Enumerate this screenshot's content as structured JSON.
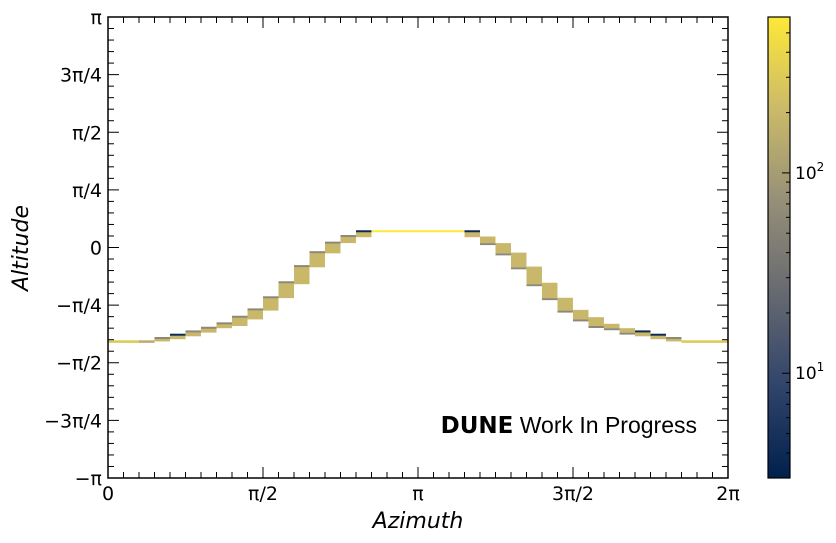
{
  "chart_data": {
    "type": "heatmap",
    "xlabel": "Azimuth",
    "ylabel": "Altitude",
    "xlim": [
      0,
      6.283185
    ],
    "ylim": [
      -3.141593,
      3.141593
    ],
    "x_ticks": [
      {
        "value": 0,
        "label": "0"
      },
      {
        "value": 1.570796,
        "label": "π/2"
      },
      {
        "value": 3.141593,
        "label": "π"
      },
      {
        "value": 4.712389,
        "label": "3π/2"
      },
      {
        "value": 6.283185,
        "label": "2π"
      }
    ],
    "y_ticks": [
      {
        "value": -3.141593,
        "label": "−π"
      },
      {
        "value": -2.356194,
        "label": "−3π/4"
      },
      {
        "value": -1.570796,
        "label": "−π/2"
      },
      {
        "value": -0.785398,
        "label": "−π/4"
      },
      {
        "value": 0,
        "label": "0"
      },
      {
        "value": 0.785398,
        "label": "π/4"
      },
      {
        "value": 1.570796,
        "label": "π/2"
      },
      {
        "value": 2.356194,
        "label": "3π/4"
      },
      {
        "value": 3.141593,
        "label": "π"
      }
    ],
    "colorbar": {
      "scale": "log",
      "range": [
        3,
        600
      ],
      "tick_labels": [
        {
          "value": 10,
          "base": "10",
          "exp": "1"
        },
        {
          "value": 100,
          "base": "10",
          "exp": "2"
        }
      ],
      "colormap": [
        "#00204d",
        "#31446b",
        "#666970",
        "#958f78",
        "#cbba69",
        "#fee838"
      ]
    },
    "cells": [
      {
        "x0": 0.0,
        "x1": 0.314,
        "y0": -1.3,
        "y1": -1.265,
        "count": 300
      },
      {
        "x0": 0.314,
        "x1": 0.471,
        "y0": -1.3,
        "y1": -1.265,
        "count": 150
      },
      {
        "x0": 0.471,
        "x1": 0.628,
        "y0": -1.28,
        "y1": -1.24,
        "count": 200
      },
      {
        "x0": 0.471,
        "x1": 0.628,
        "y0": -1.24,
        "y1": -1.22,
        "count": 60
      },
      {
        "x0": 0.628,
        "x1": 0.785,
        "y0": -1.25,
        "y1": -1.2,
        "count": 200
      },
      {
        "x0": 0.628,
        "x1": 0.785,
        "y0": -1.2,
        "y1": -1.175,
        "count": 4
      },
      {
        "x0": 0.785,
        "x1": 0.942,
        "y0": -1.21,
        "y1": -1.15,
        "count": 200
      },
      {
        "x0": 0.785,
        "x1": 0.942,
        "y0": -1.15,
        "y1": -1.13,
        "count": 60
      },
      {
        "x0": 0.942,
        "x1": 1.1,
        "y0": -1.16,
        "y1": -1.1,
        "count": 200
      },
      {
        "x0": 0.942,
        "x1": 1.1,
        "y0": -1.1,
        "y1": -1.08,
        "count": 60
      },
      {
        "x0": 1.1,
        "x1": 1.257,
        "y0": -1.1,
        "y1": -1.04,
        "count": 200
      },
      {
        "x0": 1.1,
        "x1": 1.257,
        "y0": -1.04,
        "y1": -1.02,
        "count": 60
      },
      {
        "x0": 1.257,
        "x1": 1.414,
        "y0": -1.07,
        "y1": -0.95,
        "count": 200
      },
      {
        "x0": 1.257,
        "x1": 1.414,
        "y0": -0.95,
        "y1": -0.93,
        "count": 60
      },
      {
        "x0": 1.414,
        "x1": 1.571,
        "y0": -0.98,
        "y1": -0.85,
        "count": 200
      },
      {
        "x0": 1.414,
        "x1": 1.571,
        "y0": -0.85,
        "y1": -0.83,
        "count": 60
      },
      {
        "x0": 1.571,
        "x1": 1.728,
        "y0": -0.86,
        "y1": -0.685,
        "count": 200
      },
      {
        "x0": 1.571,
        "x1": 1.728,
        "y0": -0.685,
        "y1": -0.665,
        "count": 60
      },
      {
        "x0": 1.728,
        "x1": 1.885,
        "y0": -0.69,
        "y1": -0.48,
        "count": 200
      },
      {
        "x0": 1.728,
        "x1": 1.885,
        "y0": -0.48,
        "y1": -0.46,
        "count": 60
      },
      {
        "x0": 1.885,
        "x1": 2.042,
        "y0": -0.5,
        "y1": -0.26,
        "count": 200
      },
      {
        "x0": 1.885,
        "x1": 2.042,
        "y0": -0.26,
        "y1": -0.24,
        "count": 60
      },
      {
        "x0": 2.042,
        "x1": 2.199,
        "y0": -0.27,
        "y1": -0.07,
        "count": 200
      },
      {
        "x0": 2.042,
        "x1": 2.199,
        "y0": -0.07,
        "y1": -0.05,
        "count": 60
      },
      {
        "x0": 2.199,
        "x1": 2.356,
        "y0": -0.08,
        "y1": 0.06,
        "count": 200
      },
      {
        "x0": 2.199,
        "x1": 2.356,
        "y0": 0.06,
        "y1": 0.08,
        "count": 60
      },
      {
        "x0": 2.356,
        "x1": 2.513,
        "y0": 0.06,
        "y1": 0.15,
        "count": 200
      },
      {
        "x0": 2.356,
        "x1": 2.513,
        "y0": 0.15,
        "y1": 0.17,
        "count": 60
      },
      {
        "x0": 2.513,
        "x1": 2.67,
        "y0": 0.14,
        "y1": 0.215,
        "count": 200
      },
      {
        "x0": 2.513,
        "x1": 2.67,
        "y0": 0.215,
        "y1": 0.235,
        "count": 4
      },
      {
        "x0": 2.67,
        "x1": 3.613,
        "y0": 0.215,
        "y1": 0.235,
        "count": 600
      },
      {
        "x0": 3.613,
        "x1": 3.77,
        "y0": 0.14,
        "y1": 0.215,
        "count": 200
      },
      {
        "x0": 3.613,
        "x1": 3.77,
        "y0": 0.215,
        "y1": 0.235,
        "count": 4
      },
      {
        "x0": 3.77,
        "x1": 3.927,
        "y0": 0.06,
        "y1": 0.15,
        "count": 200
      },
      {
        "x0": 3.77,
        "x1": 3.927,
        "y0": 0.04,
        "y1": 0.06,
        "count": 60
      },
      {
        "x0": 3.927,
        "x1": 4.084,
        "y0": -0.08,
        "y1": 0.06,
        "count": 200
      },
      {
        "x0": 3.927,
        "x1": 4.084,
        "y0": -0.1,
        "y1": -0.08,
        "count": 60
      },
      {
        "x0": 4.084,
        "x1": 4.241,
        "y0": -0.27,
        "y1": -0.07,
        "count": 200
      },
      {
        "x0": 4.084,
        "x1": 4.241,
        "y0": -0.29,
        "y1": -0.27,
        "count": 60
      },
      {
        "x0": 4.241,
        "x1": 4.398,
        "y0": -0.5,
        "y1": -0.26,
        "count": 200
      },
      {
        "x0": 4.241,
        "x1": 4.398,
        "y0": -0.52,
        "y1": -0.5,
        "count": 60
      },
      {
        "x0": 4.398,
        "x1": 4.555,
        "y0": -0.69,
        "y1": -0.48,
        "count": 200
      },
      {
        "x0": 4.398,
        "x1": 4.555,
        "y0": -0.71,
        "y1": -0.69,
        "count": 60
      },
      {
        "x0": 4.555,
        "x1": 4.712,
        "y0": -0.86,
        "y1": -0.685,
        "count": 200
      },
      {
        "x0": 4.555,
        "x1": 4.712,
        "y0": -0.88,
        "y1": -0.86,
        "count": 60
      },
      {
        "x0": 4.712,
        "x1": 4.869,
        "y0": -0.98,
        "y1": -0.85,
        "count": 200
      },
      {
        "x0": 4.712,
        "x1": 4.869,
        "y0": -1.0,
        "y1": -0.98,
        "count": 60
      },
      {
        "x0": 4.869,
        "x1": 5.026,
        "y0": -1.07,
        "y1": -0.95,
        "count": 200
      },
      {
        "x0": 4.869,
        "x1": 5.026,
        "y0": -1.09,
        "y1": -1.07,
        "count": 60
      },
      {
        "x0": 5.026,
        "x1": 5.184,
        "y0": -1.1,
        "y1": -1.04,
        "count": 200
      },
      {
        "x0": 5.026,
        "x1": 5.184,
        "y0": -1.12,
        "y1": -1.1,
        "count": 60
      },
      {
        "x0": 5.184,
        "x1": 5.341,
        "y0": -1.16,
        "y1": -1.1,
        "count": 200
      },
      {
        "x0": 5.184,
        "x1": 5.341,
        "y0": -1.18,
        "y1": -1.16,
        "count": 60
      },
      {
        "x0": 5.341,
        "x1": 5.498,
        "y0": -1.21,
        "y1": -1.15,
        "count": 200
      },
      {
        "x0": 5.341,
        "x1": 5.498,
        "y0": -1.15,
        "y1": -1.13,
        "count": 4
      },
      {
        "x0": 5.498,
        "x1": 5.655,
        "y0": -1.25,
        "y1": -1.2,
        "count": 200
      },
      {
        "x0": 5.498,
        "x1": 5.655,
        "y0": -1.2,
        "y1": -1.175,
        "count": 4
      },
      {
        "x0": 5.655,
        "x1": 5.812,
        "y0": -1.28,
        "y1": -1.24,
        "count": 200
      },
      {
        "x0": 5.655,
        "x1": 5.812,
        "y0": -1.24,
        "y1": -1.22,
        "count": 60
      },
      {
        "x0": 5.812,
        "x1": 6.283,
        "y0": -1.3,
        "y1": -1.265,
        "count": 300
      }
    ]
  },
  "watermark": {
    "bold": "DUNE",
    "rest": " Work In Progress"
  }
}
